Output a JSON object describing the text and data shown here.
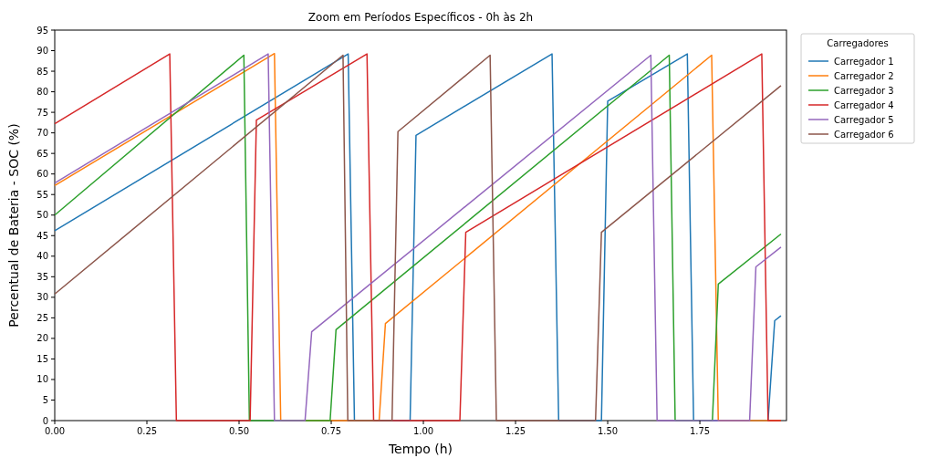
{
  "chart_data": {
    "type": "line",
    "title": "Zoom em Períodos Específicos - 0h às 2h",
    "xlabel": "Tempo (h)",
    "ylabel": "Percentual de Bateria - SOC (%)",
    "legend_title": "Carregadores",
    "legend": "top right",
    "xlim": [
      0,
      1.985
    ],
    "ylim": [
      0,
      95
    ],
    "xticks": [
      {
        "value": 0,
        "label": "0.00"
      },
      {
        "value": 0.25,
        "label": "0.25"
      },
      {
        "value": 0.5,
        "label": "0.50"
      },
      {
        "value": 0.75,
        "label": "0.75"
      },
      {
        "value": 1,
        "label": "1.00"
      },
      {
        "value": 1.25,
        "label": "1.25"
      },
      {
        "value": 1.5,
        "label": "1.50"
      },
      {
        "value": 1.75,
        "label": "1.75"
      }
    ],
    "yticks": [
      0,
      5,
      10,
      15,
      20,
      25,
      30,
      35,
      40,
      45,
      50,
      55,
      60,
      65,
      70,
      75,
      80,
      85,
      90,
      95
    ],
    "series": [
      {
        "name": "Carregador 1",
        "color": "#1f77b4",
        "x": [
          0,
          0.796,
          0.813,
          0.964,
          0.98,
          1.349,
          1.367,
          1.483,
          1.5,
          1.716,
          1.733,
          1.935,
          1.953,
          1.97
        ],
        "values": [
          46.2,
          89.2,
          0,
          0,
          69.4,
          89.2,
          0,
          0,
          77.7,
          89.2,
          0,
          0,
          24.3,
          25.5
        ]
      },
      {
        "name": "Carregador 2",
        "color": "#ff7f0e",
        "x": [
          0,
          0.596,
          0.613,
          0.88,
          0.897,
          1.782,
          1.8,
          1.97
        ],
        "values": [
          57.2,
          89.3,
          0,
          0,
          23.6,
          88.9,
          0,
          0
        ]
      },
      {
        "name": "Carregador 3",
        "color": "#2ca02c",
        "x": [
          0,
          0.513,
          0.528,
          0.747,
          0.763,
          1.667,
          1.683,
          1.784,
          1.8,
          1.97
        ],
        "values": [
          50,
          88.9,
          0,
          0,
          22.1,
          88.9,
          0,
          0,
          33.2,
          45.4
        ]
      },
      {
        "name": "Carregador 4",
        "color": "#d62728",
        "x": [
          0,
          0.312,
          0.33,
          0.53,
          0.547,
          0.847,
          0.865,
          1.099,
          1.115,
          1.918,
          1.935,
          1.97
        ],
        "values": [
          72.2,
          89.2,
          0,
          0,
          73.1,
          89.2,
          0,
          0,
          45.8,
          89.2,
          0,
          0
        ]
      },
      {
        "name": "Carregador 5",
        "color": "#9467bd",
        "x": [
          0,
          0.579,
          0.596,
          0.679,
          0.697,
          1.617,
          1.634,
          1.885,
          1.902,
          1.97
        ],
        "values": [
          57.8,
          89.2,
          0,
          0,
          21.6,
          88.9,
          0,
          0,
          37.4,
          42.2
        ]
      },
      {
        "name": "Carregador 6",
        "color": "#8c564b",
        "x": [
          0,
          0.782,
          0.795,
          0.915,
          0.931,
          1.181,
          1.198,
          1.467,
          1.483,
          1.97
        ],
        "values": [
          30.8,
          88.9,
          0,
          0,
          70.3,
          88.9,
          0,
          0,
          45.8,
          81.5
        ]
      }
    ]
  }
}
